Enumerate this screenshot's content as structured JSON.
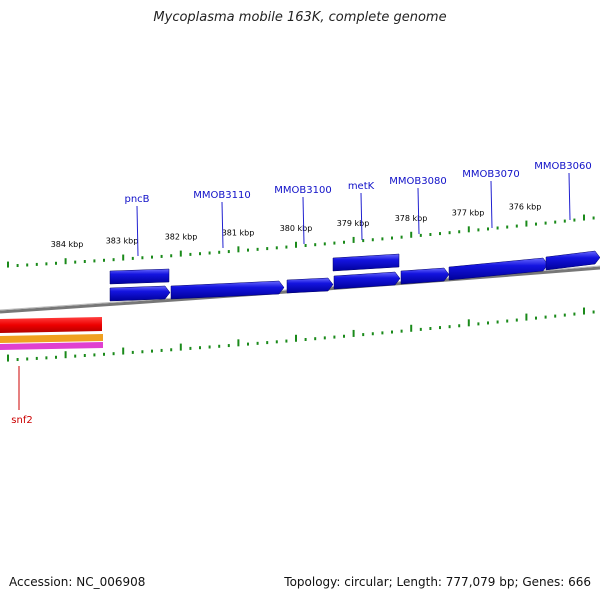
{
  "title": "Mycoplasma mobile 163K, complete genome",
  "footer": {
    "accession": "Accession: NC_006908",
    "topology": "Topology: circular; Length: 777,079 bp; Genes: 666"
  },
  "colors": {
    "forward_gene": "#1414e0",
    "tick": "#1a8a1a",
    "backbone": "#8a8a8a",
    "reverse_label": "#cc0000",
    "forward_label": "#1010c8"
  },
  "position_labels": [
    "384 kbp",
    "383 kbp",
    "382 kbp",
    "381 kbp",
    "380 kbp",
    "379 kbp",
    "378 kbp",
    "377 kbp",
    "376 kbp"
  ],
  "gene_labels_forward": [
    "pncB",
    "MMOB3110",
    "MMOB3100",
    "metK",
    "MMOB3080",
    "MMOB3070",
    "MMOB3060"
  ],
  "gene_labels_reverse": [
    "snf2"
  ]
}
